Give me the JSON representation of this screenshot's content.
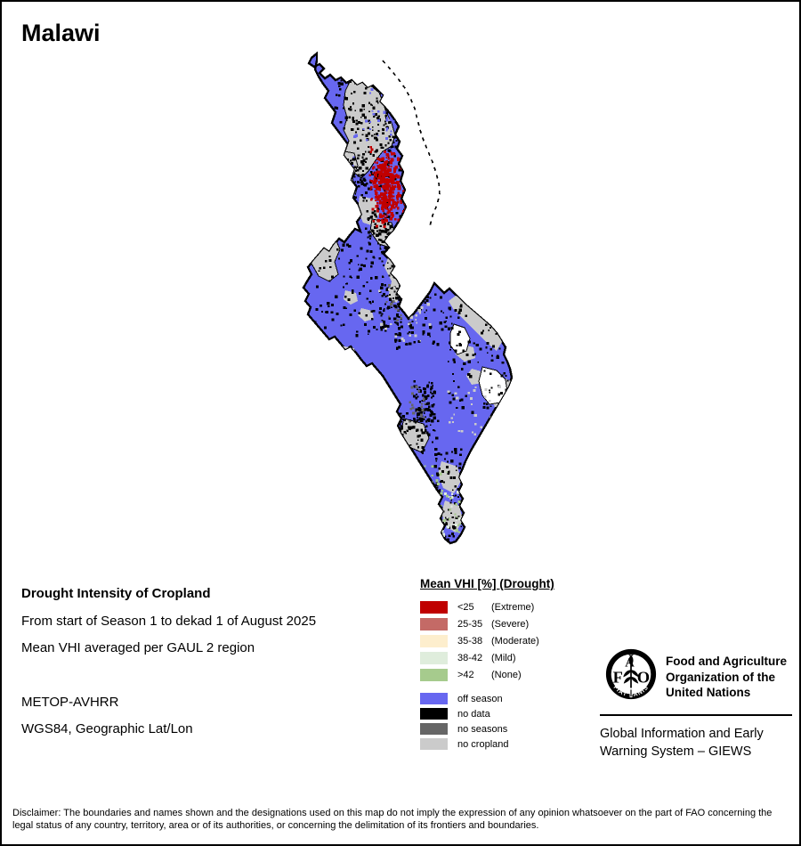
{
  "title": "Malawi",
  "info": {
    "heading": "Drought Intensity of Cropland",
    "period": "From start of Season 1 to dekad 1 of August 2025",
    "method": "Mean VHI averaged per GAUL 2 region",
    "sensor": "METOP-AVHRR",
    "projection": "WGS84, Geographic Lat/Lon"
  },
  "legend": {
    "title": "Mean VHI [%] (Drought)",
    "classes": [
      {
        "range": "<25",
        "label": "(Extreme)",
        "color": "#c00000"
      },
      {
        "range": "25-35",
        "label": "(Severe)",
        "color": "#c46a66"
      },
      {
        "range": "35-38",
        "label": "(Moderate)",
        "color": "#fdeecd"
      },
      {
        "range": "38-42",
        "label": "(Mild)",
        "color": "#dfeddc"
      },
      {
        "range": ">42",
        "label": "(None)",
        "color": "#a6cb8d"
      }
    ],
    "status": [
      {
        "label": "off season",
        "color": "#6767f0"
      },
      {
        "label": "no data",
        "color": "#000000"
      },
      {
        "label": "no seasons",
        "color": "#666666"
      },
      {
        "label": "no cropland",
        "color": "#cbcbcb"
      }
    ]
  },
  "branding": {
    "org_name": "Food and Agriculture Organization of the United Nations",
    "system_name": "Global Information and Early Warning System – GIEWS",
    "logo": {
      "letter_f": "F",
      "letter_a": "A",
      "letter_o": "O",
      "motto": "FIAT   PANIS"
    }
  },
  "disclaimer": "Disclaimer: The boundaries and names shown and the designations used on this map do not imply the expression of any opinion whatsoever on the part of FAO concerning the legal status of any country, territory, area or of its authorities, or concerning the delimitation of its frontiers and boundaries."
}
